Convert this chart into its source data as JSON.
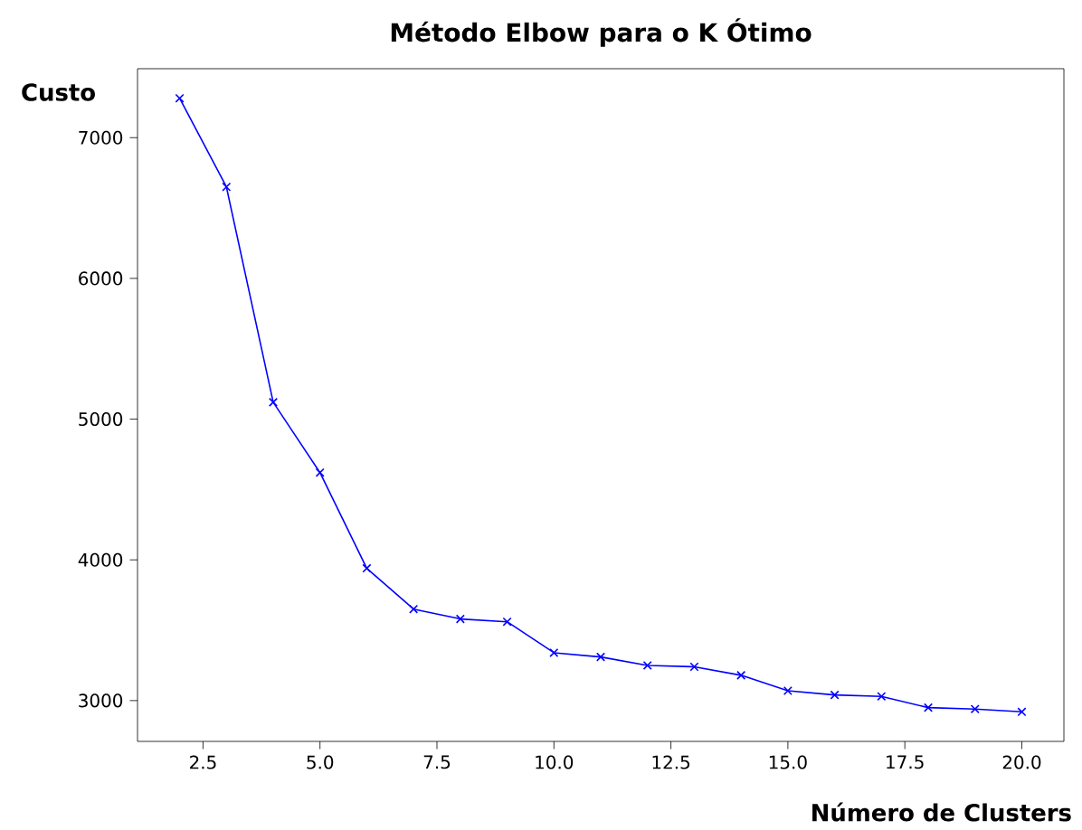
{
  "chart_data": {
    "type": "line",
    "title": "Método Elbow para o K Ótimo",
    "xlabel": "Número de Clusters",
    "ylabel": "Custo",
    "x": [
      2,
      3,
      4,
      5,
      6,
      7,
      8,
      9,
      10,
      11,
      12,
      13,
      14,
      15,
      16,
      17,
      18,
      19,
      20
    ],
    "series": [
      {
        "color": "#0000ff",
        "values": [
          7280,
          6650,
          5120,
          4620,
          3940,
          3650,
          3580,
          3560,
          3340,
          3310,
          3250,
          3240,
          3180,
          3070,
          3040,
          3030,
          2950,
          2940,
          2920
        ]
      }
    ],
    "xlim": [
      1.1,
      20.9
    ],
    "ylim": [
      2710,
      7490
    ],
    "xticks": [
      {
        "value": 2.5,
        "label": "2.5"
      },
      {
        "value": 5,
        "label": "5.0"
      },
      {
        "value": 7.5,
        "label": "7.5"
      },
      {
        "value": 10,
        "label": "10.0"
      },
      {
        "value": 12.5,
        "label": "12.5"
      },
      {
        "value": 15,
        "label": "15.0"
      },
      {
        "value": 17.5,
        "label": "17.5"
      },
      {
        "value": 20,
        "label": "20.0"
      }
    ],
    "yticks": [
      3000,
      4000,
      5000,
      6000,
      7000
    ],
    "grid": false,
    "marker": "cross",
    "line_style": "solid"
  }
}
